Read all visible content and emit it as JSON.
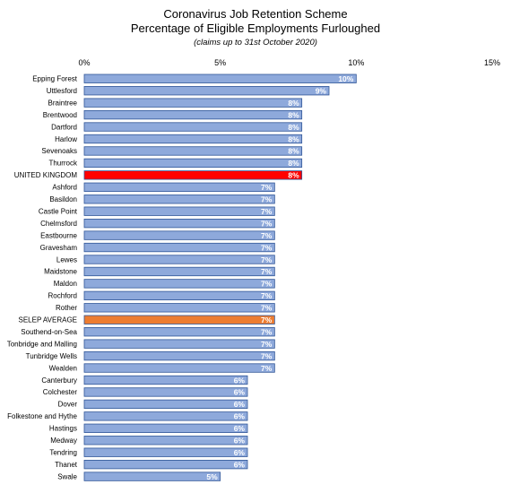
{
  "chart_data": {
    "type": "bar",
    "orientation": "horizontal",
    "title": "Coronavirus Job Retention Scheme",
    "subtitle": "Percentage of Eligible Employments Furloughed",
    "note": "(claims up to 31st October 2020)",
    "xlim": [
      0,
      15
    ],
    "xticks": [
      "0%",
      "5%",
      "10%",
      "15%"
    ],
    "xtick_values": [
      0,
      5,
      10,
      15
    ],
    "grid": false,
    "colors": {
      "default": "#8EA9DB",
      "highlight_uk": "#FF0000",
      "highlight_selep": "#ED7D31",
      "edge": "#2F5597"
    },
    "categories": [
      "Epping Forest",
      "Uttlesford",
      "Braintree",
      "Brentwood",
      "Dartford",
      "Harlow",
      "Sevenoaks",
      "Thurrock",
      "UNITED KINGDOM",
      "Ashford",
      "Basildon",
      "Castle Point",
      "Chelmsford",
      "Eastbourne",
      "Gravesham",
      "Lewes",
      "Maidstone",
      "Maldon",
      "Rochford",
      "Rother",
      "SELEP AVERAGE",
      "Southend-on-Sea",
      "Tonbridge and Malling",
      "Tunbridge Wells",
      "Wealden",
      "Canterbury",
      "Colchester",
      "Dover",
      "Folkestone and Hythe",
      "Hastings",
      "Medway",
      "Tendring",
      "Thanet",
      "Swale"
    ],
    "values": [
      10.0,
      9.0,
      8.0,
      8.0,
      8.0,
      8.0,
      8.0,
      8.0,
      8.0,
      7.0,
      7.0,
      7.0,
      7.0,
      7.0,
      7.0,
      7.0,
      7.0,
      7.0,
      7.0,
      7.0,
      7.0,
      7.0,
      7.0,
      7.0,
      7.0,
      6.0,
      6.0,
      6.0,
      6.0,
      6.0,
      6.0,
      6.0,
      6.0,
      5.0
    ],
    "labels": [
      "10%",
      "9%",
      "8%",
      "8%",
      "8%",
      "8%",
      "8%",
      "8%",
      "8%",
      "7%",
      "7%",
      "7%",
      "7%",
      "7%",
      "7%",
      "7%",
      "7%",
      "7%",
      "7%",
      "7%",
      "7%",
      "7%",
      "7%",
      "7%",
      "7%",
      "6%",
      "6%",
      "6%",
      "6%",
      "6%",
      "6%",
      "6%",
      "6%",
      "5%"
    ],
    "highlights": {
      "UNITED KINGDOM": "highlight_uk",
      "SELEP AVERAGE": "highlight_selep"
    }
  }
}
